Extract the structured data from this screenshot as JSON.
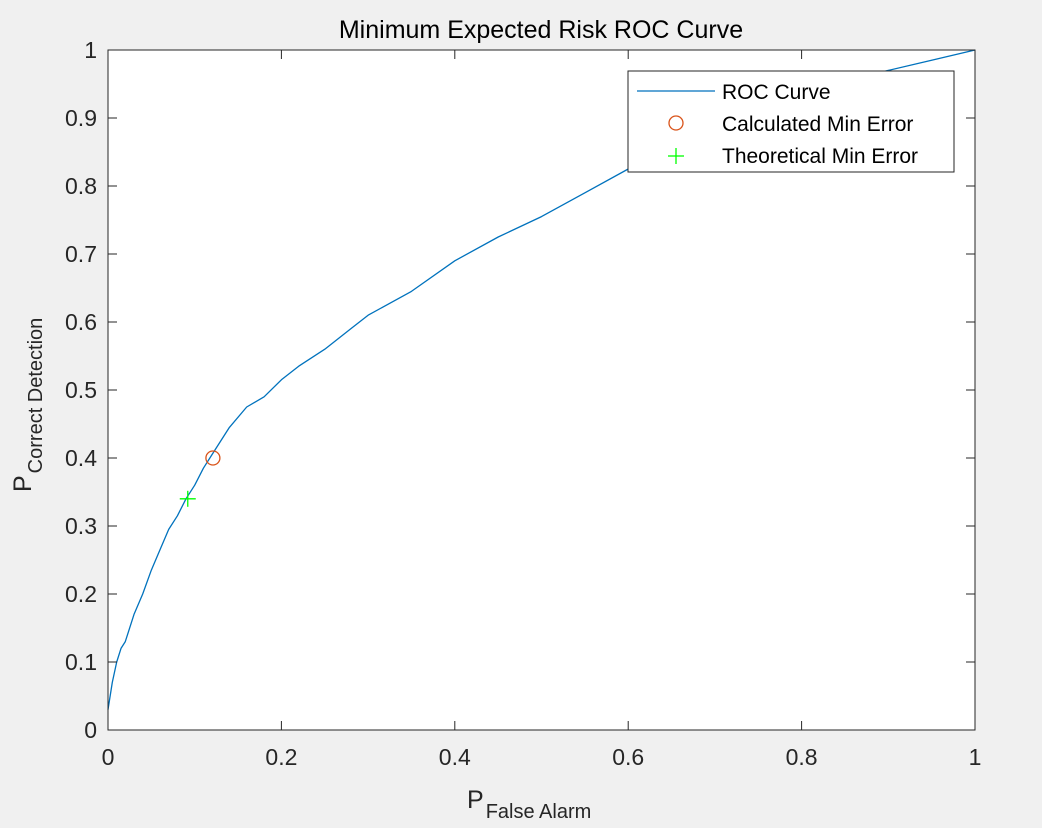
{
  "chart_data": {
    "type": "line",
    "title": "Minimum Expected Risk ROC Curve",
    "xlabel": {
      "main": "P",
      "sub": "False Alarm"
    },
    "ylabel": {
      "main": "P",
      "sub": "Correct Detection"
    },
    "xlim": [
      0,
      1
    ],
    "ylim": [
      0,
      1
    ],
    "xticks": [
      "0",
      "0.2",
      "0.4",
      "0.6",
      "0.8",
      "1"
    ],
    "yticks": [
      "0",
      "0.1",
      "0.2",
      "0.3",
      "0.4",
      "0.5",
      "0.6",
      "0.7",
      "0.8",
      "0.9",
      "1"
    ],
    "grid": false,
    "legend_position": "top-right",
    "series": [
      {
        "name": "ROC Curve",
        "style": "line",
        "color": "#0072bd",
        "x": [
          0,
          0.005,
          0.01,
          0.015,
          0.02,
          0.03,
          0.04,
          0.05,
          0.06,
          0.07,
          0.08,
          0.09,
          0.1,
          0.11,
          0.12,
          0.13,
          0.14,
          0.16,
          0.18,
          0.2,
          0.22,
          0.25,
          0.28,
          0.3,
          0.35,
          0.4,
          0.45,
          0.5,
          0.55,
          0.6,
          0.65,
          0.7,
          0.75,
          0.8,
          0.85,
          0.9,
          0.95,
          1.0
        ],
        "y": [
          0.03,
          0.07,
          0.1,
          0.12,
          0.13,
          0.17,
          0.2,
          0.235,
          0.265,
          0.295,
          0.315,
          0.34,
          0.36,
          0.385,
          0.405,
          0.425,
          0.445,
          0.475,
          0.49,
          0.515,
          0.535,
          0.56,
          0.59,
          0.61,
          0.645,
          0.69,
          0.725,
          0.755,
          0.79,
          0.825,
          0.85,
          0.87,
          0.9,
          0.93,
          0.955,
          0.97,
          0.985,
          1.0
        ]
      },
      {
        "name": "Calculated Min Error",
        "style": "marker-circle",
        "color": "#d95319",
        "x": [
          0.121
        ],
        "y": [
          0.4
        ]
      },
      {
        "name": "Theoretical Min Error",
        "style": "marker-plus",
        "color": "#00ff00",
        "x": [
          0.092
        ],
        "y": [
          0.34
        ]
      }
    ]
  }
}
